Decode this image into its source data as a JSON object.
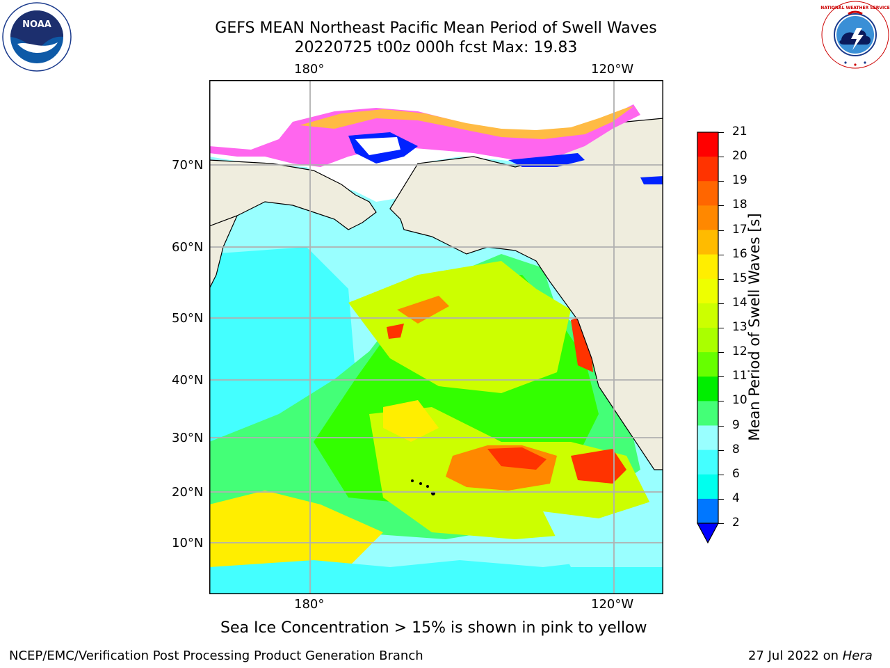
{
  "header": {
    "title_line1": "GEFS MEAN Northeast Pacific Mean Period of Swell Waves",
    "title_line2": "20220725 t00z 000h fcst   Max: 19.83"
  },
  "logos": {
    "noaa_text": "NOAA",
    "nws_text": "NATIONAL WEATHER SERVICE"
  },
  "map": {
    "lon_labels_top": [
      "180°",
      "120°W"
    ],
    "lon_labels_bottom": [
      "180°",
      "120°W"
    ],
    "lat_labels": [
      "70°N",
      "60°N",
      "50°N",
      "40°N",
      "30°N",
      "20°N",
      "10°N"
    ],
    "colors": {
      "land": "#efedde",
      "ocean_light": "#99ffff",
      "ocean_cyan": "#44ffff",
      "green_light": "#44ff77",
      "green": "#33ff00",
      "yellowgreen": "#ccff00",
      "yellow": "#ffee00",
      "orange": "#ff8800",
      "red": "#ff3300",
      "ice_pink": "#ff66ee",
      "ice_orange": "#ffbb44",
      "ice_blue": "#0022ff"
    }
  },
  "colorbar": {
    "label": "Mean Period of Swell Waves [s]",
    "ticks": [
      "21",
      "20",
      "19",
      "18",
      "17",
      "16",
      "15",
      "14",
      "13",
      "12",
      "11",
      "10",
      "9",
      "8",
      "6",
      "4",
      "2"
    ],
    "colors": [
      "#ff0000",
      "#ff3300",
      "#ff6600",
      "#ff8800",
      "#ffbb00",
      "#ffee00",
      "#eeff00",
      "#ccff00",
      "#aaff00",
      "#66ff00",
      "#00ee00",
      "#44ff77",
      "#99ffff",
      "#44ffff",
      "#00ffee",
      "#0077ff",
      "#0000ff"
    ]
  },
  "notes": {
    "sea_ice": "Sea Ice Concentration > 15% is shown in pink to yellow"
  },
  "footer": {
    "left": "NCEP/EMC/Verification Post Processing Product Generation Branch",
    "right_date": "27 Jul 2022 on ",
    "right_machine": "Hera"
  }
}
